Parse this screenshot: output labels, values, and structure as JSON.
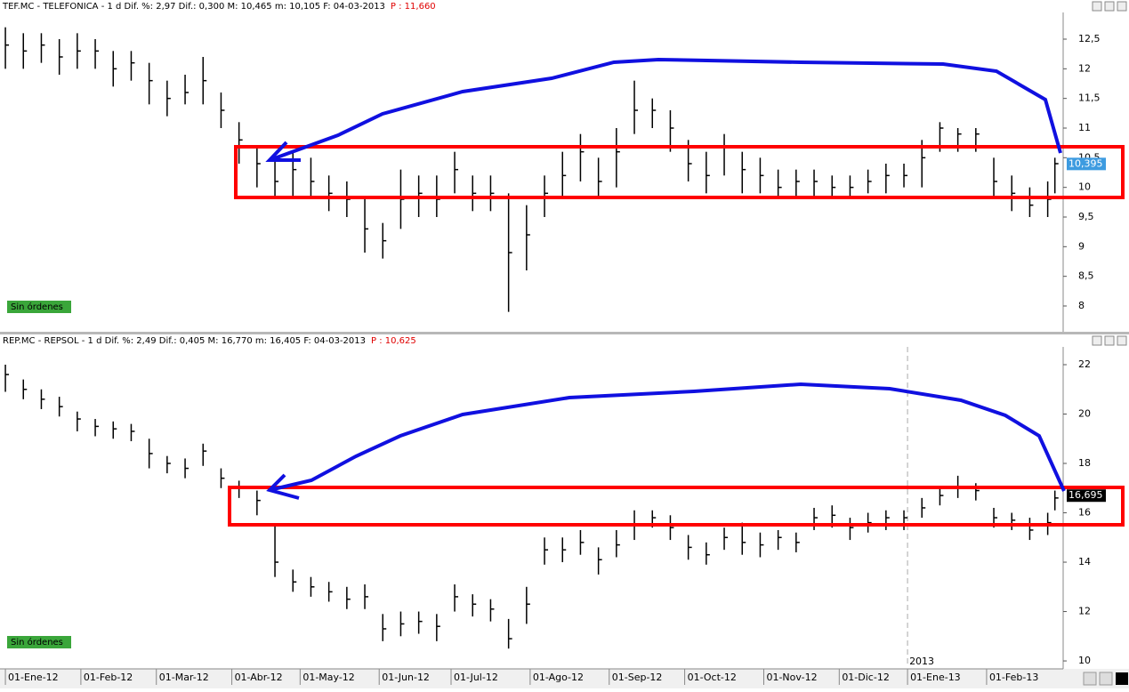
{
  "chart_data": [
    {
      "type": "ohlc",
      "title": "TEF.MC - TELEFONICA -  1 d Dif. %: 2,97 Dif.: 0,300 M: 10,465 m: 10,105 F: 04-03-2013",
      "price_text": "P : 11,660",
      "order_label": "Sin órdenes",
      "color": "#000000",
      "x": [
        0,
        5,
        10,
        15,
        20,
        25,
        30,
        35,
        40,
        45,
        50,
        55,
        60,
        65,
        70,
        75,
        80,
        85,
        90,
        95,
        100,
        105,
        110,
        115,
        120,
        125,
        130,
        135,
        140,
        145,
        150,
        155,
        160,
        165,
        170,
        175,
        180,
        185,
        190,
        195,
        200,
        205,
        210,
        215,
        220,
        225,
        230,
        235,
        240,
        245,
        250,
        255,
        260,
        265,
        270,
        275,
        280,
        285,
        290,
        292
      ],
      "high": [
        12.7,
        12.6,
        12.6,
        12.5,
        12.6,
        12.5,
        12.3,
        12.3,
        12.1,
        11.8,
        11.9,
        12.2,
        11.6,
        11.1,
        10.7,
        10.5,
        10.6,
        10.5,
        10.2,
        10.1,
        9.8,
        9.4,
        10.3,
        10.2,
        10.2,
        10.6,
        10.2,
        10.2,
        9.9,
        9.7,
        10.2,
        10.6,
        10.9,
        10.5,
        11.0,
        11.8,
        11.5,
        11.3,
        10.8,
        10.6,
        10.9,
        10.6,
        10.5,
        10.3,
        10.3,
        10.3,
        10.2,
        10.2,
        10.3,
        10.4,
        10.4,
        10.8,
        11.1,
        11.0,
        11.0,
        10.5,
        10.2,
        10.0,
        10.1,
        10.5
      ],
      "low": [
        12.0,
        12.0,
        12.1,
        11.9,
        12.0,
        12.0,
        11.7,
        11.8,
        11.4,
        11.2,
        11.4,
        11.4,
        11.0,
        10.4,
        10.0,
        9.8,
        9.8,
        9.8,
        9.6,
        9.5,
        8.9,
        8.8,
        9.3,
        9.5,
        9.5,
        9.9,
        9.6,
        9.6,
        7.9,
        8.6,
        9.5,
        9.8,
        10.1,
        9.8,
        10.0,
        10.9,
        11.0,
        10.6,
        10.1,
        9.9,
        10.2,
        9.9,
        9.9,
        9.8,
        9.8,
        9.8,
        9.8,
        9.8,
        9.9,
        9.9,
        10.0,
        10.0,
        10.6,
        10.6,
        10.6,
        9.8,
        9.6,
        9.5,
        9.5,
        9.9
      ],
      "close": [
        12.4,
        12.3,
        12.4,
        12.2,
        12.3,
        12.3,
        12.0,
        12.1,
        11.8,
        11.5,
        11.6,
        11.8,
        11.3,
        10.8,
        10.4,
        10.1,
        10.3,
        10.1,
        9.9,
        9.8,
        9.3,
        9.1,
        9.8,
        9.9,
        9.8,
        10.3,
        9.9,
        9.9,
        8.9,
        9.2,
        9.9,
        10.2,
        10.6,
        10.1,
        10.6,
        11.3,
        11.3,
        11.0,
        10.4,
        10.2,
        10.7,
        10.3,
        10.2,
        10.0,
        10.1,
        10.1,
        10.0,
        10.0,
        10.1,
        10.2,
        10.2,
        10.5,
        11.0,
        10.9,
        10.9,
        10.1,
        9.9,
        9.7,
        9.8,
        10.4
      ],
      "xlim": [
        -1.5,
        294.3
      ],
      "ylim": [
        7.565,
        12.95
      ],
      "yticks": [
        8,
        {
          "value": 8.5,
          "label": "8,5"
        },
        9,
        {
          "value": 9.5,
          "label": "9,5"
        },
        10,
        {
          "value": 10.5,
          "label": "10,5"
        },
        11,
        {
          "value": 11.5,
          "label": "11,5"
        },
        12,
        {
          "value": 12.5,
          "label": "12,5"
        }
      ],
      "last_price": {
        "value": 10.395,
        "label": "10,395"
      },
      "last_price_color": "#3d9be0"
    },
    {
      "type": "ohlc",
      "title": "REP.MC - REPSOL -  1 d Dif. %: 2,49 Dif.: 0,405 M: 16,770 m: 16,405 F: 04-03-2013",
      "price_text": "P : 10,625",
      "order_label": "Sin órdenes",
      "color": "#000000",
      "x": [
        0,
        5,
        10,
        15,
        20,
        25,
        30,
        35,
        40,
        45,
        50,
        55,
        60,
        65,
        70,
        75,
        80,
        85,
        90,
        95,
        100,
        105,
        110,
        115,
        120,
        125,
        130,
        135,
        140,
        145,
        150,
        155,
        160,
        165,
        170,
        175,
        180,
        185,
        190,
        195,
        200,
        205,
        210,
        215,
        220,
        225,
        230,
        235,
        240,
        245,
        250,
        255,
        260,
        265,
        270,
        275,
        280,
        285,
        290,
        292
      ],
      "high": [
        22.0,
        21.4,
        21.0,
        20.7,
        20.1,
        19.8,
        19.7,
        19.6,
        19.0,
        18.3,
        18.2,
        18.8,
        17.8,
        17.3,
        16.9,
        15.5,
        13.7,
        13.4,
        13.2,
        13.0,
        13.1,
        11.9,
        12.0,
        12.0,
        11.9,
        13.1,
        12.7,
        12.5,
        11.7,
        13.0,
        15.0,
        15.0,
        15.3,
        14.6,
        15.3,
        16.1,
        16.1,
        15.9,
        15.1,
        14.8,
        15.4,
        15.6,
        15.2,
        15.3,
        15.2,
        16.2,
        16.3,
        15.8,
        16.0,
        16.1,
        16.1,
        16.6,
        17.1,
        17.5,
        17.2,
        16.2,
        16.0,
        15.8,
        16.0,
        16.9
      ],
      "low": [
        20.9,
        20.6,
        20.2,
        19.9,
        19.3,
        19.1,
        19.0,
        18.9,
        17.8,
        17.6,
        17.4,
        17.9,
        17.0,
        16.6,
        15.9,
        13.4,
        12.8,
        12.6,
        12.4,
        12.1,
        12.1,
        10.8,
        11.0,
        11.1,
        10.8,
        12.0,
        11.8,
        11.6,
        10.5,
        11.5,
        13.9,
        14.0,
        14.3,
        13.5,
        14.2,
        14.9,
        15.4,
        14.9,
        14.1,
        13.9,
        14.5,
        14.3,
        14.2,
        14.5,
        14.4,
        15.3,
        15.4,
        14.9,
        15.2,
        15.3,
        15.3,
        15.8,
        16.3,
        16.6,
        16.5,
        15.4,
        15.3,
        14.9,
        15.1,
        16.1
      ],
      "close": [
        21.6,
        21.0,
        20.6,
        20.3,
        19.8,
        19.5,
        19.4,
        19.3,
        18.4,
        18.0,
        17.8,
        18.5,
        17.4,
        17.0,
        16.5,
        14.0,
        13.2,
        13.0,
        12.8,
        12.5,
        12.6,
        11.3,
        11.5,
        11.6,
        11.4,
        12.6,
        12.3,
        12.1,
        10.9,
        12.3,
        14.5,
        14.5,
        14.8,
        14.1,
        14.7,
        15.5,
        15.8,
        15.4,
        14.6,
        14.3,
        15.0,
        14.8,
        14.7,
        15.0,
        14.8,
        15.8,
        15.9,
        15.4,
        15.6,
        15.8,
        15.8,
        16.2,
        16.7,
        17.0,
        16.9,
        15.8,
        15.7,
        15.3,
        15.6,
        16.6
      ],
      "xlim": [
        -1.5,
        294.3
      ],
      "ylim": [
        9.75,
        22.72
      ],
      "yticks": [
        10,
        12,
        14,
        16,
        18,
        20,
        22
      ],
      "xticks": [
        {
          "value": 0,
          "label": "01-Ene-12"
        },
        {
          "value": 21,
          "label": "01-Feb-12"
        },
        {
          "value": 42,
          "label": "01-Mar-12"
        },
        {
          "value": 63,
          "label": "01-Abr-12"
        },
        {
          "value": 82,
          "label": "01-May-12"
        },
        {
          "value": 104,
          "label": "01-Jun-12"
        },
        {
          "value": 124,
          "label": "01-Jul-12"
        },
        {
          "value": 146,
          "label": "01-Ago-12"
        },
        {
          "value": 168,
          "label": "01-Sep-12"
        },
        {
          "value": 189,
          "label": "01-Oct-12"
        },
        {
          "value": 211,
          "label": "01-Nov-12"
        },
        {
          "value": 232,
          "label": "01-Dic-12"
        },
        {
          "value": 251,
          "label": "01-Ene-13"
        },
        {
          "value": 273,
          "label": "01-Feb-13"
        }
      ],
      "year_label": "2013",
      "last_price": {
        "value": 16.695,
        "label": "16,695"
      },
      "last_price_color": "#000000"
    }
  ]
}
